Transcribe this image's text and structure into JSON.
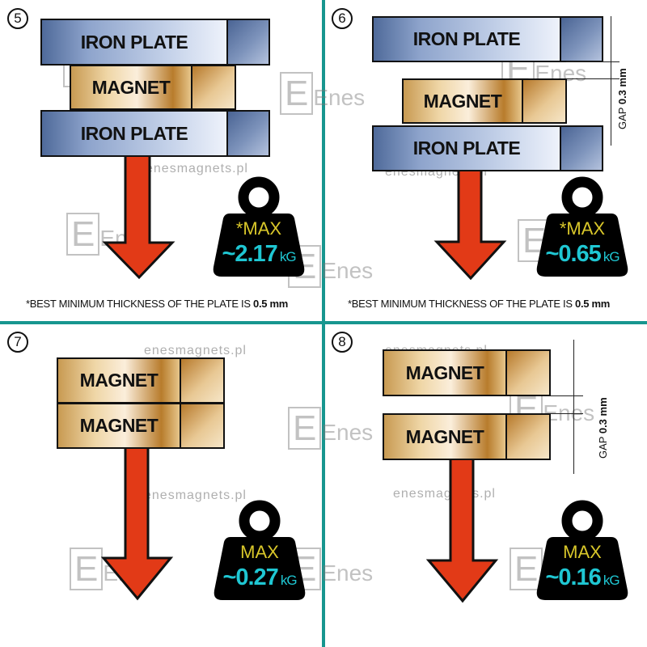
{
  "watermark": {
    "logo": "Enes",
    "url": "enesmagnets.pl"
  },
  "colors": {
    "divider": "#17968f",
    "max_label": "#d9c72a",
    "value": "#1fc7d3",
    "arrow": "#e23a17"
  },
  "panels": [
    {
      "number": "5",
      "blocks": [
        "IRON PLATE",
        "MAGNET",
        "IRON PLATE"
      ],
      "max_label": "*MAX",
      "value": "~2.17",
      "unit": "kG",
      "footnote": {
        "text": "*BEST MINIMUM THICKNESS OF THE PLATE IS",
        "value": "0.5 mm"
      }
    },
    {
      "number": "6",
      "blocks": [
        "IRON PLATE",
        "MAGNET",
        "IRON PLATE"
      ],
      "max_label": "*MAX",
      "value": "~0.65",
      "unit": "kG",
      "gap": {
        "label": "GAP",
        "value": "0.3 mm"
      },
      "footnote": {
        "text": "*BEST MINIMUM THICKNESS OF THE PLATE IS",
        "value": "0.5 mm"
      }
    },
    {
      "number": "7",
      "blocks": [
        "MAGNET",
        "MAGNET"
      ],
      "max_label": "MAX",
      "value": "~0.27",
      "unit": "kG"
    },
    {
      "number": "8",
      "blocks": [
        "MAGNET",
        "MAGNET"
      ],
      "max_label": "MAX",
      "value": "~0.16",
      "unit": "kG",
      "gap": {
        "label": "GAP",
        "value": "0.3 mm"
      }
    }
  ]
}
